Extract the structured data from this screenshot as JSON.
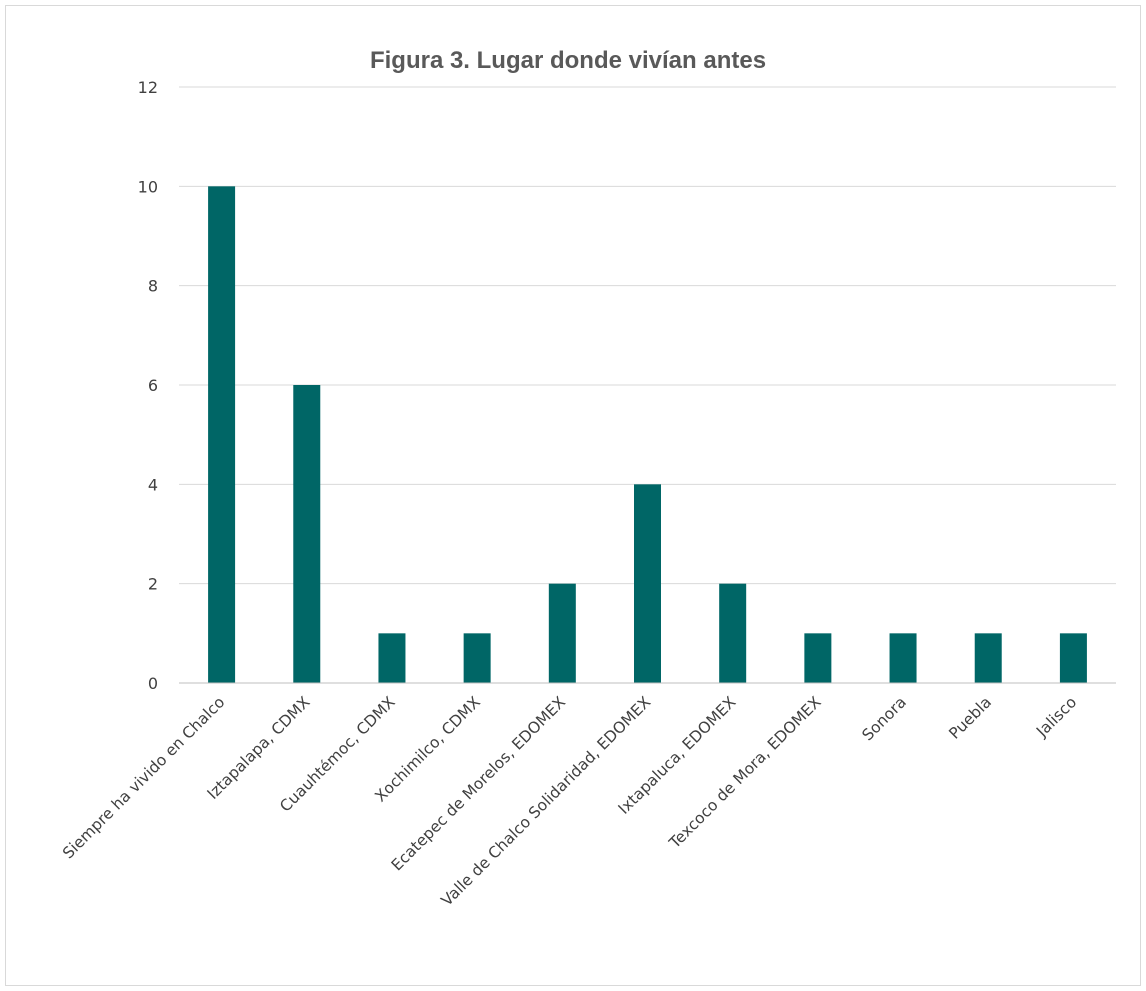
{
  "chart_data": {
    "type": "bar",
    "title": "Figura 3. Lugar donde vivían antes",
    "xlabel": "",
    "ylabel": "",
    "categories": [
      "Siempre ha vivido en Chalco",
      "Iztapalapa, CDMX",
      "Cuauhtémoc, CDMX",
      "Xochimilco, CDMX",
      "Ecatepec de Morelos, EDOMEX",
      "Valle de Chalco Solidaridad, EDOMEX",
      "Ixtapaluca, EDOMEX",
      "Texcoco de Mora, EDOMEX",
      "Sonora",
      "Puebla",
      "Jalisco"
    ],
    "values": [
      10,
      6,
      1,
      1,
      2,
      4,
      2,
      1,
      1,
      1,
      1
    ],
    "ylim": [
      0,
      12
    ],
    "yticks": [
      "0",
      "2",
      "4",
      "6",
      "8",
      "10",
      "12"
    ],
    "grid": true,
    "legend": "none",
    "colors": {
      "bar": "#006666",
      "grid": "#d9d9d9",
      "axis": "#bfbfbf",
      "text": "#404040",
      "title": "#595959"
    }
  }
}
